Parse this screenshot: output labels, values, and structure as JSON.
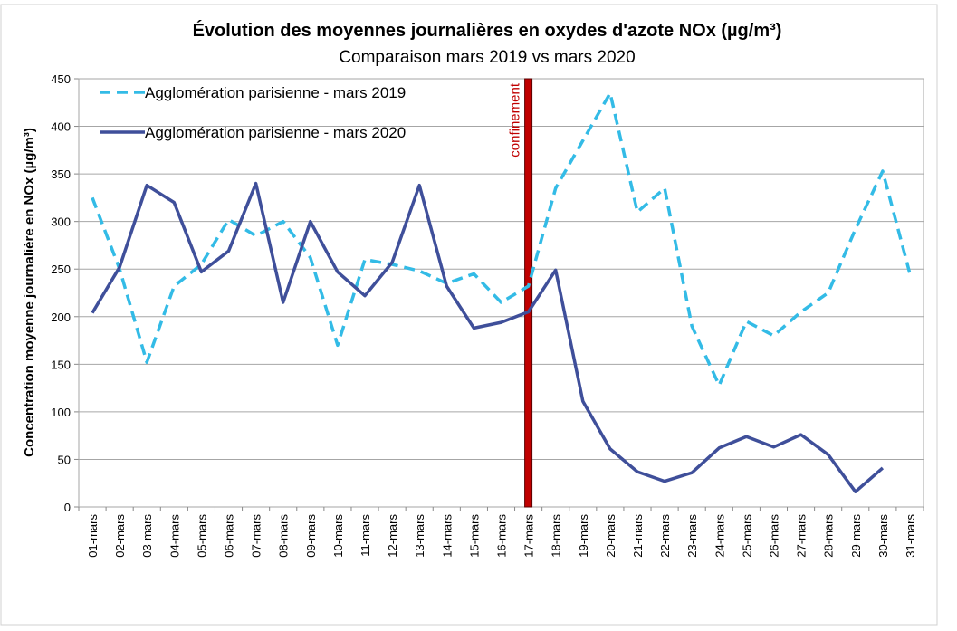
{
  "chart_data": {
    "type": "line",
    "title": "Évolution des moyennes journalières en oxydes d'azote NOx (µg/m³)",
    "subtitle": "Comparaison mars 2019 vs mars 2020",
    "y_label": "Concentration moyenne journalière en NOx (µg/m³)",
    "categories": [
      "01-mars",
      "02-mars",
      "03-mars",
      "04-mars",
      "05-mars",
      "06-mars",
      "07-mars",
      "08-mars",
      "09-mars",
      "10-mars",
      "11-mars",
      "12-mars",
      "13-mars",
      "14-mars",
      "15-mars",
      "16-mars",
      "17-mars",
      "18-mars",
      "19-mars",
      "20-mars",
      "21-mars",
      "22-mars",
      "23-mars",
      "24-mars",
      "25-mars",
      "26-mars",
      "27-mars",
      "28-mars",
      "29-mars",
      "30-mars",
      "31-mars"
    ],
    "series": [
      {
        "name": "Agglomération parisienne - mars 2019",
        "color": "#33bbe6",
        "dashed": true,
        "values": [
          325,
          250,
          152,
          232,
          255,
          302,
          285,
          300,
          262,
          170,
          260,
          255,
          248,
          235,
          245,
          215,
          232,
          335,
          385,
          435,
          310,
          335,
          190,
          128,
          195,
          180,
          205,
          225,
          292,
          353,
          245
        ]
      },
      {
        "name": "Agglomération parisienne - mars 2020",
        "color": "#3f4f9a",
        "dashed": false,
        "values": [
          204,
          252,
          338,
          320,
          247,
          269,
          340,
          215,
          300,
          247,
          222,
          257,
          338,
          232,
          188,
          194,
          205,
          249,
          111,
          61,
          37,
          27,
          36,
          62,
          74,
          63,
          76,
          55,
          16,
          41,
          null
        ]
      }
    ],
    "annotation": {
      "text": "confinement",
      "category": "17-mars",
      "color": "#c00000"
    },
    "ylim": [
      0,
      450
    ],
    "yticks": [
      0,
      50,
      100,
      150,
      200,
      250,
      300,
      350,
      400,
      450
    ],
    "grid": true,
    "legend": "top-left"
  }
}
